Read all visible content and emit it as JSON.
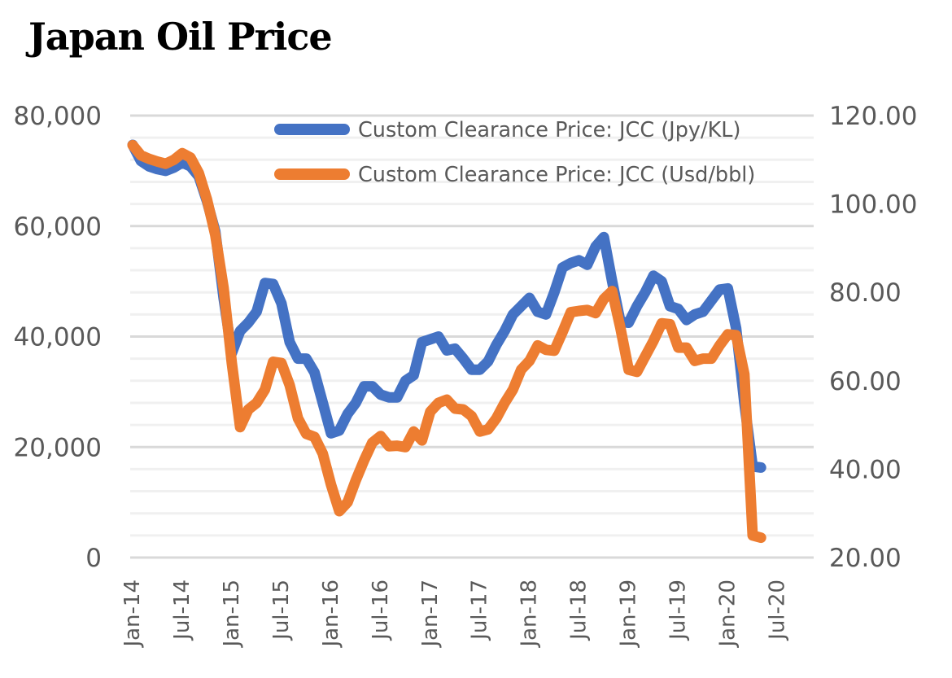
{
  "chart_data": {
    "type": "line",
    "title": "Japan Oil Price",
    "xlabel": "",
    "ylabel_left": "",
    "ylabel_right": "",
    "x_tick_labels": [
      "Jan-14",
      "Jul-14",
      "Jan-15",
      "Jul-15",
      "Jan-16",
      "Jul-16",
      "Jan-17",
      "Jul-17",
      "Jan-18",
      "Jul-18",
      "Jan-19",
      "Jul-19",
      "Jan-20",
      "Jul-20"
    ],
    "x_range": [
      "Jan-14",
      "Jul-20"
    ],
    "y_left": {
      "range": [
        0,
        80000
      ],
      "major_step": 20000,
      "minor_step": 4000,
      "tick_labels": [
        "0",
        "20,000",
        "40,000",
        "60,000",
        "80,000"
      ]
    },
    "y_right": {
      "range": [
        20,
        120
      ],
      "major_step": 20,
      "tick_labels": [
        "20.00",
        "40.00",
        "60.00",
        "80.00",
        "100.00",
        "120.00"
      ]
    },
    "grid": true,
    "legend_position": "top-right",
    "x": [
      "Jan-14",
      "Feb-14",
      "Mar-14",
      "Apr-14",
      "May-14",
      "Jun-14",
      "Jul-14",
      "Aug-14",
      "Sep-14",
      "Oct-14",
      "Nov-14",
      "Dec-14",
      "Jan-15",
      "Feb-15",
      "Mar-15",
      "Apr-15",
      "May-15",
      "Jun-15",
      "Jul-15",
      "Aug-15",
      "Sep-15",
      "Oct-15",
      "Nov-15",
      "Dec-15",
      "Jan-16",
      "Feb-16",
      "Mar-16",
      "Apr-16",
      "May-16",
      "Jun-16",
      "Jul-16",
      "Aug-16",
      "Sep-16",
      "Oct-16",
      "Nov-16",
      "Dec-16",
      "Jan-17",
      "Feb-17",
      "Mar-17",
      "Apr-17",
      "May-17",
      "Jun-17",
      "Jul-17",
      "Aug-17",
      "Sep-17",
      "Oct-17",
      "Nov-17",
      "Dec-17",
      "Jan-18",
      "Feb-18",
      "Mar-18",
      "Apr-18",
      "May-18",
      "Jun-18",
      "Jul-18",
      "Aug-18",
      "Sep-18",
      "Oct-18",
      "Nov-18",
      "Dec-18",
      "Jan-19",
      "Feb-19",
      "Mar-19",
      "Apr-19",
      "May-19",
      "Jun-19",
      "Jul-19",
      "Aug-19",
      "Sep-19",
      "Oct-19",
      "Nov-19",
      "Dec-19",
      "Jan-20",
      "Feb-20",
      "Mar-20",
      "Apr-20",
      "May-20"
    ],
    "series": [
      {
        "name": "Custom Clearance Price: JCC (Jpy/KL)",
        "axis": "left",
        "color": "#4472c4",
        "values": [
          74700,
          71800,
          70800,
          70300,
          70000,
          70600,
          71500,
          70800,
          69000,
          64500,
          59000,
          47000,
          37000,
          41000,
          42500,
          44500,
          49700,
          49500,
          46000,
          39000,
          36000,
          36000,
          33500,
          28000,
          22500,
          23000,
          26000,
          28000,
          31000,
          31000,
          29500,
          29000,
          29000,
          32000,
          33000,
          39000,
          39500,
          40000,
          37500,
          37800,
          36000,
          34000,
          34000,
          35500,
          38500,
          41000,
          44000,
          45500,
          47000,
          44500,
          44000,
          48000,
          52500,
          53300,
          53800,
          53000,
          56300,
          58000,
          50000,
          42700,
          42500,
          45500,
          48000,
          51000,
          50000,
          45500,
          45000,
          43000,
          44000,
          44500,
          46500,
          48500,
          48700,
          41500,
          28000,
          16500,
          16300
        ]
      },
      {
        "name": "Custom Clearance Price: JCC (Usd/bbl)",
        "axis": "right",
        "color": "#ed7d31",
        "values": [
          113.3,
          111.0,
          110.2,
          109.6,
          109.1,
          110.0,
          111.5,
          110.5,
          107.0,
          101.0,
          93.0,
          81.0,
          64.0,
          49.5,
          53.5,
          55.0,
          58.0,
          64.3,
          64.0,
          59.0,
          51.5,
          48.0,
          47.3,
          43.5,
          36.5,
          30.5,
          32.5,
          37.5,
          42.0,
          46.0,
          47.5,
          45.2,
          45.3,
          45.0,
          48.5,
          46.5,
          53.0,
          55.0,
          55.7,
          53.7,
          53.5,
          52.0,
          48.5,
          49.0,
          51.5,
          55.0,
          58.0,
          62.5,
          64.5,
          68.0,
          67.0,
          66.8,
          71.0,
          75.5,
          75.8,
          76.0,
          75.3,
          78.5,
          80.3,
          72.0,
          62.5,
          62.0,
          65.5,
          69.0,
          73.0,
          72.8,
          67.5,
          67.5,
          64.5,
          65.0,
          65.0,
          68.0,
          70.5,
          70.3,
          61.5,
          25.0,
          24.5
        ]
      }
    ]
  }
}
